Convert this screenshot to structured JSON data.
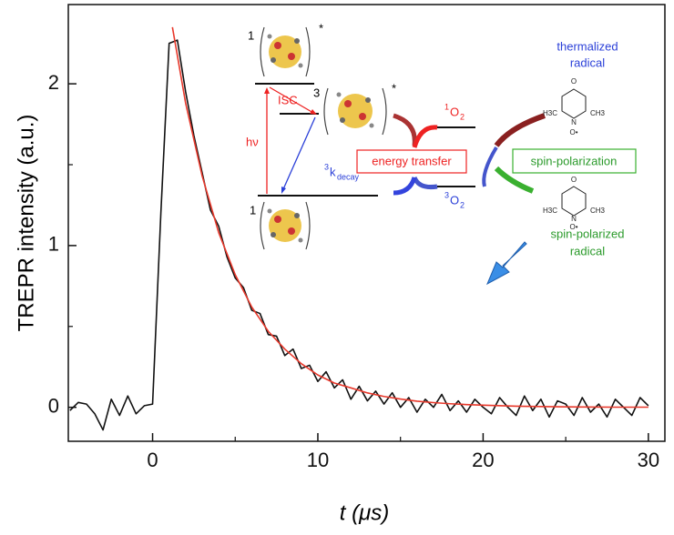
{
  "chart_data": {
    "type": "line",
    "x_label": "t (μs)",
    "y_label": "TREPR intensity (a.u.)",
    "xlim": [
      -5.1,
      31
    ],
    "ylim": [
      -0.21,
      2.49
    ],
    "xticks": [
      0,
      10,
      20,
      30
    ],
    "yticks": [
      0,
      1,
      2
    ],
    "xminorticks": [
      5,
      15,
      25
    ],
    "yminorticks": [
      0.5,
      1.5
    ],
    "series": [
      {
        "color": "#111111",
        "x": [
          -5,
          -4.5,
          -4,
          -3.5,
          -3,
          -2.5,
          -2,
          -1.5,
          -1,
          -0.5,
          0,
          0.5,
          1,
          1.5,
          2,
          2.5,
          3,
          3.5,
          4,
          4.5,
          5,
          5.5,
          6,
          6.5,
          7,
          7.5,
          8,
          8.5,
          9,
          9.5,
          10,
          10.5,
          11,
          11.5,
          12,
          12.5,
          13,
          13.5,
          14,
          14.5,
          15,
          15.5,
          16,
          16.5,
          17,
          17.5,
          18,
          18.5,
          19,
          19.5,
          20,
          20.5,
          21,
          21.5,
          22,
          22.5,
          23,
          23.5,
          24,
          24.5,
          25,
          25.5,
          26,
          26.5,
          27,
          27.5,
          28,
          28.5,
          29,
          29.5,
          30
        ],
        "values": [
          -0.02,
          0.03,
          0.02,
          -0.04,
          -0.14,
          0.05,
          -0.05,
          0.07,
          -0.04,
          0.01,
          0.02,
          1.2,
          2.25,
          2.27,
          1.95,
          1.68,
          1.45,
          1.22,
          1.12,
          0.93,
          0.8,
          0.74,
          0.6,
          0.58,
          0.45,
          0.44,
          0.32,
          0.36,
          0.24,
          0.26,
          0.16,
          0.22,
          0.12,
          0.17,
          0.05,
          0.13,
          0.04,
          0.1,
          0.02,
          0.09,
          0,
          0.06,
          -0.03,
          0.05,
          0,
          0.08,
          -0.02,
          0.04,
          -0.03,
          0.05,
          0,
          -0.04,
          0.06,
          0,
          -0.05,
          0.07,
          -0.02,
          0.05,
          -0.06,
          0.04,
          0.02,
          -0.05,
          0.06,
          -0.03,
          0.02,
          -0.06,
          0.05,
          0,
          -0.05,
          0.06,
          0.01
        ]
      },
      {
        "color": "#e8382b",
        "x": [
          1.2,
          2,
          3,
          4,
          5,
          6,
          7,
          8,
          9,
          10,
          11,
          12,
          13,
          14,
          15,
          16,
          17,
          18,
          19,
          20,
          22,
          24,
          26,
          28,
          30
        ],
        "values": [
          2.35,
          1.88,
          1.43,
          1.08,
          0.82,
          0.62,
          0.47,
          0.36,
          0.27,
          0.2,
          0.15,
          0.12,
          0.089,
          0.067,
          0.051,
          0.038,
          0.029,
          0.022,
          0.017,
          0.013,
          0.007,
          0.004,
          0.002,
          0.001,
          0.001
        ]
      }
    ],
    "annotations": {
      "singlet_excited": "1",
      "star1": "*",
      "triplet": "3",
      "star2": "*",
      "singlet_ground": "1",
      "isc": "ISC",
      "hv": "hν",
      "kdecay_sup": "3",
      "kdecay_main": "k",
      "kdecay_sub": "decay",
      "energy_transfer": "energy transfer",
      "o2_singlet_sup": "1",
      "o2_singlet": "O",
      "o2_singlet_sub": "2",
      "o2_triplet_sup": "3",
      "o2_triplet": "O",
      "o2_triplet_sub": "2",
      "spin_polarization": "spin-polarization",
      "thermalized": "thermalized",
      "radical_top": "radical",
      "spin_polarized": "spin-polarized",
      "radical_bottom": "radical",
      "atom_o": "O",
      "atom_n": "N",
      "atom_radical": "O•",
      "methyl_left": "H3C",
      "methyl_right": "CH3"
    }
  }
}
